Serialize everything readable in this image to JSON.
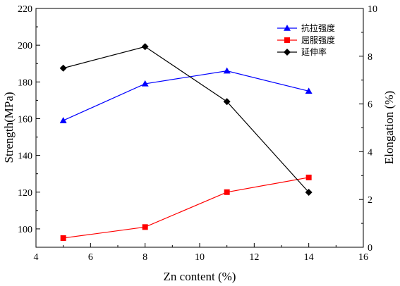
{
  "chart_data": {
    "type": "line",
    "xlabel": "Zn content (%)",
    "ylabel_left": "Strength(MPa)",
    "ylabel_right": "Elongation (%)",
    "xlim": [
      4,
      16
    ],
    "ylim_left": [
      90,
      220
    ],
    "ylim_right": [
      0,
      10
    ],
    "x_ticks": [
      4,
      6,
      8,
      10,
      12,
      14,
      16
    ],
    "y_left_ticks": [
      100,
      120,
      140,
      160,
      180,
      200,
      220
    ],
    "y_right_ticks": [
      0,
      2,
      4,
      6,
      8,
      10
    ],
    "grid": false,
    "legend_position": "top-right",
    "x": [
      5,
      8,
      11,
      14
    ],
    "series": [
      {
        "name": "抗拉强度",
        "axis": "left",
        "color": "#0000ff",
        "marker": "triangle",
        "values": [
          159,
          179,
          186,
          175
        ]
      },
      {
        "name": "屈服强度",
        "axis": "left",
        "color": "#ff0000",
        "marker": "square",
        "values": [
          95,
          101,
          120,
          128
        ]
      },
      {
        "name": "延伸率",
        "axis": "right",
        "color": "#000000",
        "marker": "diamond",
        "values": [
          7.5,
          8.4,
          6.1,
          2.3
        ]
      }
    ]
  }
}
